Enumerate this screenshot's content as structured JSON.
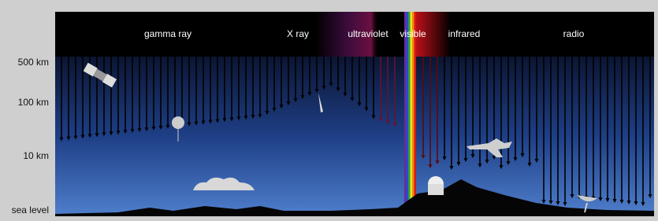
{
  "bands": [
    "gamma ray",
    "X ray",
    "ultraviolet",
    "visible",
    "infrared",
    "radio"
  ],
  "altitudes": [
    "500 km",
    "100 km",
    "10 km",
    "sea level"
  ]
}
